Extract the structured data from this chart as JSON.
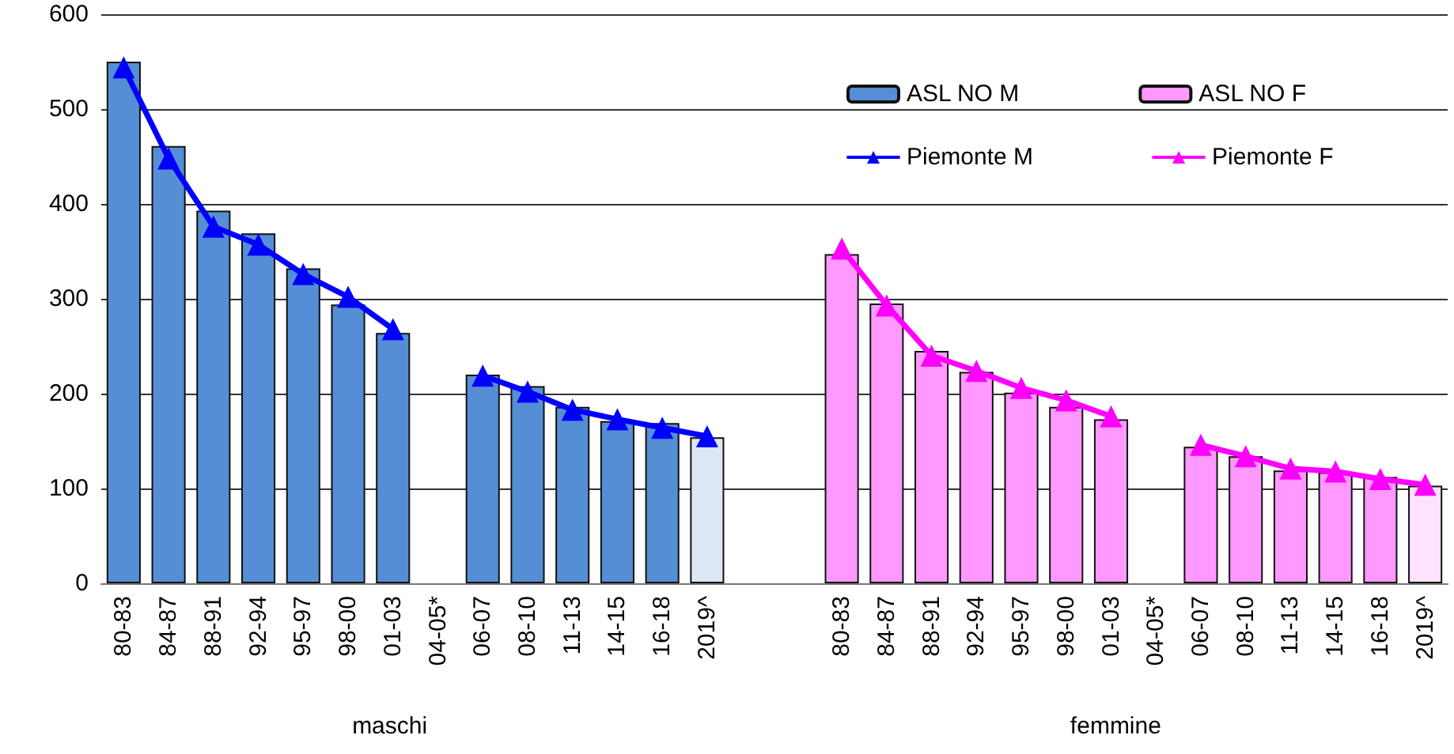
{
  "chart_data": {
    "type": "bar",
    "categories": [
      "80-83",
      "84-87",
      "88-91",
      "92-94",
      "95-97",
      "98-00",
      "01-03",
      "04-05*",
      "06-07",
      "08-10",
      "11-13",
      "14-15",
      "16-18",
      "2019^",
      null,
      null,
      "80-83",
      "84-87",
      "88-91",
      "92-94",
      "95-97",
      "98-00",
      "01-03",
      "04-05*",
      "06-07",
      "08-10",
      "11-13",
      "14-15",
      "16-18",
      "2019^"
    ],
    "series": [
      {
        "name": "ASL NO M",
        "color": "#558ed5",
        "colors": [
          "#558ed5",
          "#558ed5",
          "#558ed5",
          "#558ed5",
          "#558ed5",
          "#558ed5",
          "#558ed5",
          "#558ed5",
          "#558ed5",
          "#558ed5",
          "#558ed5",
          "#558ed5",
          "#558ed5",
          "#dce6f4",
          null,
          null,
          null,
          null,
          null,
          null,
          null,
          null,
          null,
          null,
          null,
          null,
          null,
          null,
          null,
          null
        ],
        "values": [
          550,
          461,
          393,
          369,
          332,
          294,
          264,
          null,
          220,
          208,
          186,
          171,
          169,
          154,
          null,
          null,
          null,
          null,
          null,
          null,
          null,
          null,
          null,
          null,
          null,
          null,
          null,
          null,
          null,
          null
        ]
      },
      {
        "name": "ASL NO F",
        "color": "#ff99ff",
        "colors": [
          null,
          null,
          null,
          null,
          null,
          null,
          null,
          null,
          null,
          null,
          null,
          null,
          null,
          null,
          null,
          null,
          "#ff99ff",
          "#ff99ff",
          "#ff99ff",
          "#ff99ff",
          "#ff99ff",
          "#ff99ff",
          "#ff99ff",
          "#ff99ff",
          "#ff99ff",
          "#ff99ff",
          "#ff99ff",
          "#ff99ff",
          "#ff99ff",
          "#fde3fd"
        ],
        "values": [
          null,
          null,
          null,
          null,
          null,
          null,
          null,
          null,
          null,
          null,
          null,
          null,
          null,
          null,
          null,
          null,
          347,
          295,
          245,
          223,
          201,
          186,
          173,
          null,
          144,
          134,
          119,
          117,
          112,
          103
        ]
      },
      {
        "name": "Piemonte M",
        "type": "line",
        "color": "#0000ff",
        "values": [
          544,
          448,
          376,
          357,
          326,
          302,
          268,
          null,
          219,
          202,
          183,
          173,
          164,
          155,
          null,
          null,
          null,
          null,
          null,
          null,
          null,
          null,
          null,
          null,
          null,
          null,
          null,
          null,
          null,
          null
        ]
      },
      {
        "name": "Piemonte F",
        "type": "line",
        "color": "#ff00ff",
        "values": [
          null,
          null,
          null,
          null,
          null,
          null,
          null,
          null,
          null,
          null,
          null,
          null,
          null,
          null,
          null,
          null,
          353,
          293,
          240,
          224,
          206,
          193,
          176,
          null,
          146,
          134,
          121,
          118,
          110,
          104
        ]
      }
    ],
    "ylim": [
      0,
      600
    ],
    "yticks": [
      0,
      100,
      200,
      300,
      400,
      500,
      600
    ],
    "grid": "y",
    "legend": "top right",
    "marker": "triangle",
    "line_style": "solid",
    "annotations": [
      "maschi",
      "femmine"
    ]
  }
}
